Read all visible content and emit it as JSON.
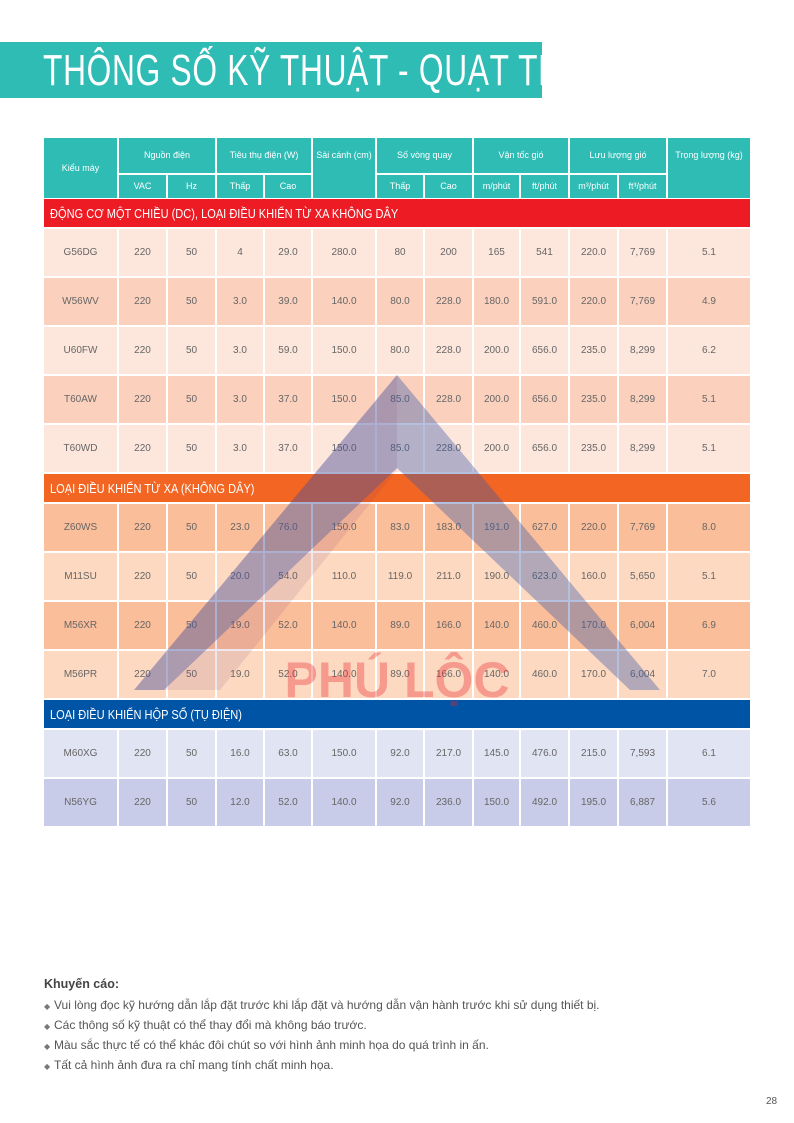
{
  "title": "THÔNG SỐ KỸ THUẬT - QUẠT TRẦN",
  "colors": {
    "header": "#2ebcb4",
    "dc_section": "#ed1c24",
    "remote_section": "#f26522",
    "gear_section": "#0054a6"
  },
  "table": {
    "headers": {
      "model": "Kiểu máy",
      "power": "Nguồn điện",
      "power_vac": "VAC",
      "power_hz": "Hz",
      "consumption": "Tiêu thụ điện (W)",
      "consumption_low": "Thấp",
      "consumption_high": "Cao",
      "blade_span": "Sải cánh (cm)",
      "rpm": "Số vòng quay",
      "rpm_low": "Thấp",
      "rpm_high": "Cao",
      "air_speed": "Vận tốc gió",
      "air_speed_m": "m/phút",
      "air_speed_ft": "ft/phút",
      "airflow": "Lưu lượng gió",
      "airflow_m3": "m³/phút",
      "airflow_ft3": "ft³/phút",
      "weight": "Trọng lượng (kg)"
    },
    "sections": [
      {
        "title": "ĐỘNG CƠ MỘT CHIỀU (DC), LOẠI ĐIỀU KHIỂN TỪ XA KHÔNG DÂY",
        "color": "#ed1c24",
        "row_colors": [
          "#fde6dc",
          "#fbd1be"
        ],
        "rows": [
          [
            "G56DG",
            "220",
            "50",
            "4",
            "29.0",
            "280.0",
            "80",
            "200",
            "165",
            "541",
            "220.0",
            "7,769",
            "5.1"
          ],
          [
            "W56WV",
            "220",
            "50",
            "3.0",
            "39.0",
            "140.0",
            "80.0",
            "228.0",
            "180.0",
            "591.0",
            "220.0",
            "7,769",
            "4.9"
          ],
          [
            "U60FW",
            "220",
            "50",
            "3.0",
            "59.0",
            "150.0",
            "80.0",
            "228.0",
            "200.0",
            "656.0",
            "235.0",
            "8,299",
            "6.2"
          ],
          [
            "T60AW",
            "220",
            "50",
            "3.0",
            "37.0",
            "150.0",
            "85.0",
            "228.0",
            "200.0",
            "656.0",
            "235.0",
            "8,299",
            "5.1"
          ],
          [
            "T60WD",
            "220",
            "50",
            "3.0",
            "37.0",
            "150.0",
            "85.0",
            "228.0",
            "200.0",
            "656.0",
            "235.0",
            "8,299",
            "5.1"
          ]
        ]
      },
      {
        "title": "LOẠI ĐIỀU KHIỂN TỪ XA (KHÔNG DÂY)",
        "color": "#f26522",
        "row_colors": [
          "#fbbe9a",
          "#fdd9c1"
        ],
        "rows": [
          [
            "Z60WS",
            "220",
            "50",
            "23.0",
            "76.0",
            "150.0",
            "83.0",
            "183.0",
            "191.0",
            "627.0",
            "220.0",
            "7,769",
            "8.0"
          ],
          [
            "M11SU",
            "220",
            "50",
            "20.0",
            "54.0",
            "110.0",
            "119.0",
            "211.0",
            "190.0",
            "623.0",
            "160.0",
            "5,650",
            "5.1"
          ],
          [
            "M56XR",
            "220",
            "50",
            "19.0",
            "52.0",
            "140.0",
            "89.0",
            "166.0",
            "140.0",
            "460.0",
            "170.0",
            "6,004",
            "6.9"
          ],
          [
            "M56PR",
            "220",
            "50",
            "19.0",
            "52.0",
            "140.0",
            "89.0",
            "166.0",
            "140.0",
            "460.0",
            "170.0",
            "6,004",
            "7.0"
          ]
        ]
      },
      {
        "title": "LOẠI ĐIỀU KHIỂN HỘP SỐ (TỤ ĐIỆN)",
        "color": "#0054a6",
        "row_colors": [
          "#e1e4f3",
          "#c8cce8"
        ],
        "rows": [
          [
            "M60XG",
            "220",
            "50",
            "16.0",
            "63.0",
            "150.0",
            "92.0",
            "217.0",
            "145.0",
            "476.0",
            "215.0",
            "7,593",
            "6.1"
          ],
          [
            "N56YG",
            "220",
            "50",
            "12.0",
            "52.0",
            "140.0",
            "92.0",
            "236.0",
            "150.0",
            "492.0",
            "195.0",
            "6,887",
            "5.6"
          ]
        ]
      }
    ]
  },
  "watermark": {
    "text": "PHÚ LỘC"
  },
  "notes": {
    "title": "Khuyến cáo:",
    "items": [
      "Vui lòng đọc kỹ hướng dẫn lắp đặt trước khi lắp đặt và hướng dẫn vận hành trước khi sử dụng thiết bị.",
      "Các thông số kỹ thuật có thể thay đổi mà không báo trước.",
      "Màu sắc thực tế có thể khác đôi chút so với hình ảnh minh họa do quá trình in ấn.",
      "Tất cả hình ảnh đưa ra chỉ mang tính chất minh họa."
    ]
  },
  "page_number": "28"
}
